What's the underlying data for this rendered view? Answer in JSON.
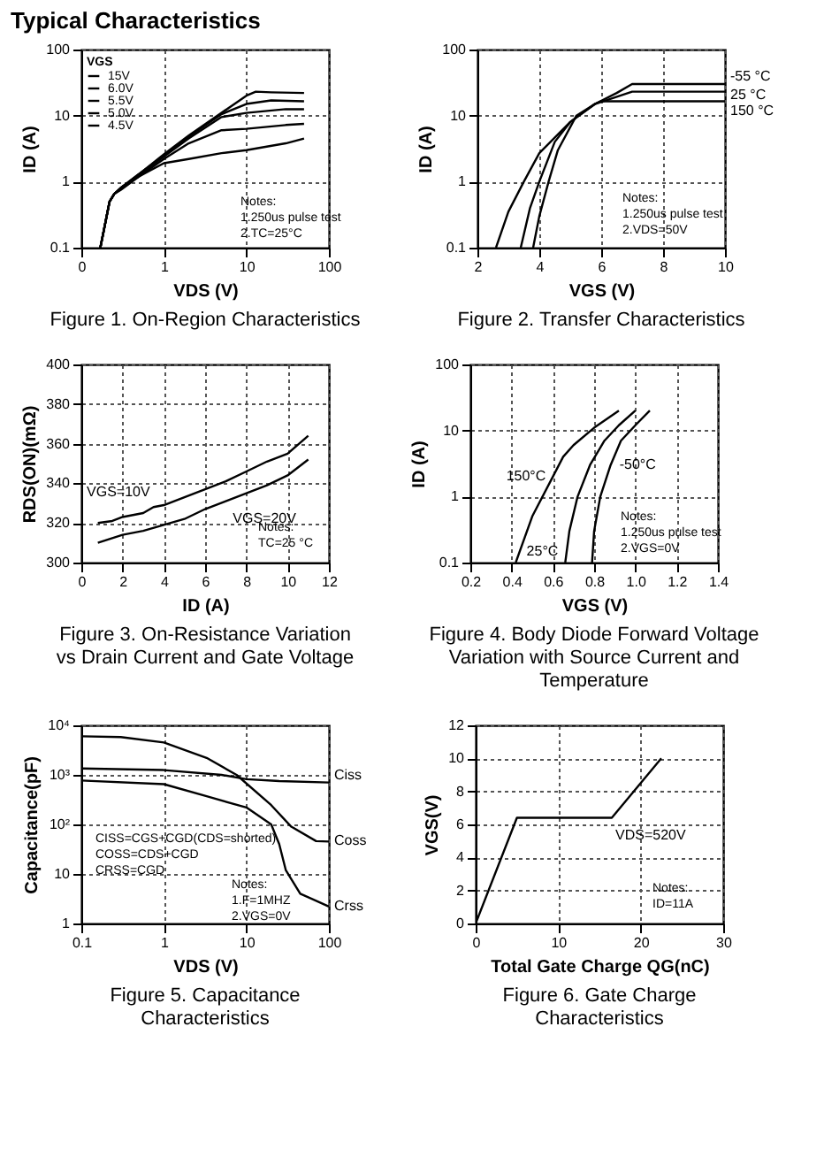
{
  "chart_data": [
    {
      "type": "line",
      "title": "Figure 1. On-Region Characteristics",
      "xlabel": "VDS (V)",
      "ylabel": "ID (A)",
      "log": "xy",
      "xlim": [
        0.1,
        100
      ],
      "ylim": [
        0.1,
        100
      ],
      "xticks": [
        {
          "value": 0.1,
          "label": "0"
        },
        1,
        10,
        100
      ],
      "yticks": [
        0.1,
        1,
        10,
        100
      ],
      "grid": true,
      "legend": "top left",
      "legend_title": "VGS",
      "marker": "none",
      "line_style": "solid",
      "annotations": [
        "Typical Characteristics",
        "Notes:",
        "1.250us pulse test",
        "2.TC=25°C"
      ],
      "series": [
        {
          "name": "15V",
          "color": "#000000",
          "x": [
            0.17,
            0.22,
            0.25,
            0.3,
            0.5,
            1,
            2,
            5,
            10,
            13,
            20,
            50
          ],
          "values": [
            0.1,
            0.5,
            0.65,
            0.8,
            1.3,
            2.6,
            5,
            11,
            20,
            23,
            22.5,
            22
          ]
        },
        {
          "name": "6.0V",
          "color": "#000000",
          "x": [
            0.17,
            0.22,
            0.25,
            0.3,
            0.5,
            1,
            2,
            5,
            10,
            20,
            50
          ],
          "values": [
            0.1,
            0.5,
            0.65,
            0.8,
            1.3,
            2.5,
            4.8,
            10.5,
            15,
            17,
            16.5
          ]
        },
        {
          "name": "5.5V",
          "color": "#000000",
          "x": [
            0.17,
            0.22,
            0.25,
            0.3,
            0.5,
            1,
            2,
            5,
            10,
            30,
            50
          ],
          "values": [
            0.1,
            0.5,
            0.65,
            0.8,
            1.25,
            2.4,
            4.5,
            9.5,
            11,
            12.5,
            12.5
          ]
        },
        {
          "name": "5.0V",
          "color": "#000000",
          "x": [
            0.17,
            0.22,
            0.25,
            0.3,
            0.5,
            1,
            2,
            5,
            10,
            30,
            50
          ],
          "values": [
            0.1,
            0.5,
            0.65,
            0.8,
            1.2,
            2.2,
            3.8,
            6,
            6.3,
            7.2,
            7.5
          ]
        },
        {
          "name": "4.5V",
          "color": "#000000",
          "x": [
            0.17,
            0.22,
            0.25,
            0.3,
            0.5,
            1,
            2,
            5,
            10,
            30,
            50
          ],
          "values": [
            0.1,
            0.5,
            0.65,
            0.75,
            1.2,
            1.9,
            2.2,
            2.7,
            3,
            3.8,
            4.5
          ]
        }
      ]
    },
    {
      "type": "line",
      "title": "Figure 2. Transfer Characteristics",
      "xlabel": "VGS (V)",
      "ylabel": "ID (A)",
      "log": "y",
      "xlim": [
        2,
        10
      ],
      "ylim": [
        0.1,
        100
      ],
      "xticks": [
        2,
        4,
        6,
        8,
        10
      ],
      "yticks": [
        0.1,
        1,
        10,
        100
      ],
      "grid": true,
      "marker": "none",
      "line_style": "solid",
      "annotations": [
        "Notes:",
        "1.250us pulse test",
        "2.VDS=50V"
      ],
      "series": [
        {
          "name": "-55 °C",
          "color": "#000000",
          "x": [
            2.6,
            3,
            3.5,
            4,
            5,
            5.8,
            6.5,
            7,
            10
          ],
          "values": [
            0.1,
            0.35,
            1,
            2.7,
            8,
            15,
            22,
            30,
            30
          ]
        },
        {
          "name": "25 °C",
          "color": "#000000",
          "x": [
            3.4,
            3.7,
            4,
            4.5,
            5,
            5.8,
            7,
            10
          ],
          "values": [
            0.1,
            0.4,
            1,
            4,
            8,
            15,
            23,
            23
          ]
        },
        {
          "name": "150 °C",
          "color": "#000000",
          "x": [
            3.8,
            4,
            4.3,
            4.6,
            5.2,
            5.8,
            6,
            10
          ],
          "values": [
            0.1,
            0.3,
            1,
            3,
            10,
            15,
            16.5,
            16.5
          ]
        }
      ]
    },
    {
      "type": "line",
      "title": "Figure 3. On-Resistance Variation  vs Drain Current and Gate Voltage",
      "xlabel": "ID (A)",
      "ylabel": "RDS(ON)(mΩ)",
      "xlim": [
        0,
        12
      ],
      "ylim": [
        300,
        400
      ],
      "xticks": [
        0,
        2,
        4,
        6,
        8,
        10,
        12
      ],
      "yticks": [
        300,
        320,
        340,
        360,
        380,
        400
      ],
      "grid": true,
      "marker": "none",
      "line_style": "solid",
      "annotations": [
        "Notes:",
        "TC=25 °C"
      ],
      "series": [
        {
          "name": "VGS=10V",
          "color": "#000000",
          "x": [
            0.8,
            1.5,
            2,
            3,
            3.5,
            4,
            5,
            6,
            7,
            8,
            9,
            10,
            11
          ],
          "values": [
            320,
            321,
            323,
            325,
            328,
            329,
            333,
            337,
            341,
            346,
            351,
            355,
            364
          ]
        },
        {
          "name": "VGS=20V",
          "color": "#000000",
          "x": [
            0.8,
            2,
            3,
            4,
            5,
            6,
            7,
            8,
            9,
            10,
            11
          ],
          "values": [
            310,
            314,
            316,
            319,
            322,
            327,
            331,
            335,
            339,
            344,
            352
          ]
        }
      ]
    },
    {
      "type": "line",
      "title": "Figure 4. Body Diode Forward Voltage Variation with Source Current and Temperature",
      "xlabel": "VGS (V)",
      "ylabel": "ID (A)",
      "log": "y",
      "xlim": [
        0.2,
        1.4
      ],
      "ylim": [
        0.1,
        100
      ],
      "xticks": [
        0.2,
        0.4,
        0.6,
        0.8,
        {
          "value": 1,
          "label": "1.0"
        },
        1.2,
        1.4
      ],
      "yticks": [
        0.1,
        1,
        10,
        100
      ],
      "grid": true,
      "marker": "none",
      "line_style": "solid",
      "annotations": [
        "Notes:",
        "1.250us pulse test",
        "2.VGS=0V"
      ],
      "series": [
        {
          "name": "150°C",
          "color": "#000000",
          "x": [
            0.42,
            0.5,
            0.6,
            0.65,
            0.7,
            0.8,
            0.92
          ],
          "values": [
            0.1,
            0.5,
            2,
            4,
            6,
            11,
            20
          ]
        },
        {
          "name": "25°C",
          "color": "#000000",
          "x": [
            0.66,
            0.68,
            0.72,
            0.78,
            0.85,
            0.92,
            1.0
          ],
          "values": [
            0.1,
            0.3,
            1,
            3,
            7,
            12,
            20
          ]
        },
        {
          "name": "-50°C",
          "color": "#000000",
          "x": [
            0.79,
            0.8,
            0.83,
            0.88,
            0.93,
            1.0,
            1.07
          ],
          "values": [
            0.1,
            0.3,
            1,
            3,
            7,
            12,
            20
          ]
        }
      ]
    },
    {
      "type": "line",
      "title": "Figure 5. Capacitance Characteristics",
      "xlabel": "VDS (V)",
      "ylabel": "Capacitance(pF)",
      "log": "xy",
      "xlim": [
        0.1,
        100
      ],
      "ylim": [
        1,
        10000
      ],
      "xticks": [
        0.1,
        1,
        10,
        100
      ],
      "yticks": [
        1,
        10,
        {
          "value": 100,
          "label": "10²"
        },
        {
          "value": 1000,
          "label": "10³"
        },
        {
          "value": 10000,
          "label": "10⁴"
        }
      ],
      "grid": true,
      "marker": "none",
      "line_style": "solid",
      "annotations": [
        "CISS=CGS+CGD(CDS=shorted)",
        "COSS=CDS+CGD",
        "CRSS=CGD",
        "Notes:",
        "1.F=1MHZ",
        "2.VGS=0V"
      ],
      "series": [
        {
          "name": "Ciss",
          "color": "#000000",
          "x": [
            0.1,
            1,
            5,
            10,
            25,
            100
          ],
          "values": [
            1350,
            1250,
            1000,
            820,
            750,
            700
          ]
        },
        {
          "name": "Coss",
          "color": "#000000",
          "x": [
            0.1,
            0.3,
            1,
            3.3,
            7.6,
            20,
            35,
            70,
            100
          ],
          "values": [
            6000,
            5800,
            4500,
            2200,
            1000,
            245,
            90,
            46,
            45
          ]
        },
        {
          "name": "Crss",
          "color": "#000000",
          "x": [
            0.1,
            1,
            3.3,
            10,
            20,
            25,
            30,
            45,
            100
          ],
          "values": [
            770,
            650,
            370,
            220,
            100,
            40,
            12,
            4,
            2.2
          ]
        }
      ]
    },
    {
      "type": "line",
      "title": "Figure 6. Gate Charge Characteristics",
      "xlabel": "Total Gate Charge QG(nC)",
      "ylabel": "VGS(V)",
      "xlim": [
        0,
        30
      ],
      "ylim": [
        0,
        12
      ],
      "xticks": [
        0,
        10,
        20,
        30
      ],
      "yticks": [
        0,
        2,
        4,
        6,
        8,
        10,
        12
      ],
      "grid": true,
      "marker": "none",
      "line_style": "solid",
      "annotations": [
        "Notes:",
        "ID=11A"
      ],
      "series": [
        {
          "name": "VDS=520V",
          "color": "#000000",
          "x": [
            0,
            5,
            16.5,
            22.5
          ],
          "values": [
            0,
            6.4,
            6.4,
            10
          ]
        }
      ]
    }
  ]
}
